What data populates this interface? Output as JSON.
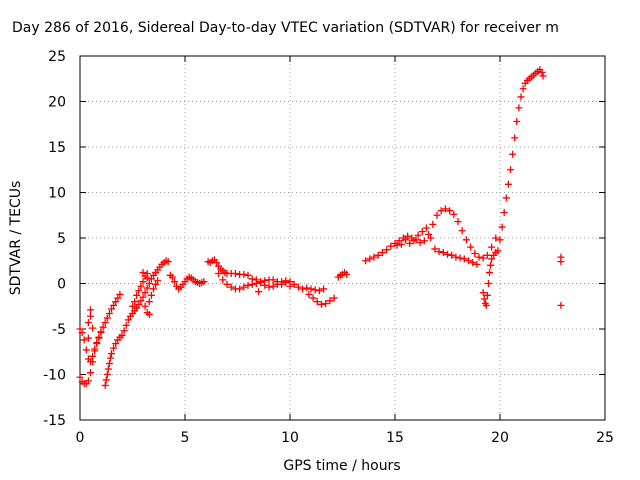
{
  "chart_data": {
    "type": "scatter",
    "title": "Day 286 of 2016, Sidereal Day-to-day VTEC variation (SDTVAR) for receiver m",
    "xlabel": "GPS time / hours",
    "ylabel": "SDTVAR / TECUs",
    "xlim": [
      0,
      25
    ],
    "ylim": [
      -15,
      25
    ],
    "x_ticks": [
      0,
      5,
      10,
      15,
      20,
      25
    ],
    "y_ticks": [
      -15,
      -10,
      -5,
      0,
      5,
      10,
      15,
      20,
      25
    ],
    "x_tick_labels": [
      "0",
      "5",
      "10",
      "15",
      "20",
      "25"
    ],
    "y_tick_labels": [
      "-15",
      "-10",
      "-5",
      "0",
      "5",
      "10",
      "15",
      "20",
      "25"
    ],
    "grid": true,
    "marker": "plus",
    "color": "#ff0000",
    "series": [
      {
        "points": [
          [
            0.0,
            -10.3
          ],
          [
            0.1,
            -10.8
          ],
          [
            0.2,
            -11.0
          ],
          [
            0.3,
            -11.0
          ],
          [
            0.4,
            -10.7
          ],
          [
            0.5,
            -9.8
          ],
          [
            0.6,
            -8.6
          ],
          [
            0.7,
            -7.4
          ],
          [
            0.8,
            -6.6
          ],
          [
            0.9,
            -6.0
          ],
          [
            1.0,
            -5.4
          ],
          [
            1.1,
            -4.8
          ],
          [
            1.2,
            -4.3
          ],
          [
            1.3,
            -3.8
          ],
          [
            1.4,
            -3.3
          ],
          [
            1.5,
            -2.8
          ],
          [
            1.6,
            -2.4
          ],
          [
            1.7,
            -2.0
          ],
          [
            1.8,
            -1.6
          ],
          [
            1.9,
            -1.2
          ],
          [
            0.0,
            -5.0
          ],
          [
            0.1,
            -5.4
          ],
          [
            0.2,
            -6.2
          ],
          [
            0.3,
            -7.3
          ],
          [
            0.4,
            -8.3
          ],
          [
            0.5,
            -8.6
          ],
          [
            0.6,
            -8.0
          ],
          [
            0.7,
            -7.2
          ],
          [
            0.8,
            -6.5
          ],
          [
            0.9,
            -5.9
          ],
          [
            1.0,
            -5.3
          ],
          [
            0.4,
            -4.3
          ],
          [
            0.5,
            -3.6
          ],
          [
            0.5,
            -2.9
          ],
          [
            0.6,
            -4.9
          ],
          [
            0.4,
            -6.0
          ],
          [
            1.2,
            -11.2
          ],
          [
            1.25,
            -10.6
          ],
          [
            1.3,
            -10.0
          ],
          [
            1.35,
            -9.4
          ],
          [
            1.4,
            -8.8
          ],
          [
            1.45,
            -8.2
          ],
          [
            1.5,
            -7.7
          ],
          [
            1.6,
            -7.1
          ],
          [
            1.7,
            -6.6
          ],
          [
            1.8,
            -6.2
          ],
          [
            1.9,
            -5.9
          ],
          [
            2.0,
            -5.7
          ],
          [
            2.1,
            -5.2
          ],
          [
            2.2,
            -4.6
          ],
          [
            2.3,
            -4.0
          ],
          [
            2.4,
            -3.6
          ],
          [
            2.5,
            -3.3
          ],
          [
            2.6,
            -3.0
          ],
          [
            2.7,
            -2.7
          ],
          [
            2.8,
            -2.3
          ],
          [
            2.9,
            -1.9
          ],
          [
            3.0,
            -1.5
          ],
          [
            3.1,
            -1.0
          ],
          [
            3.2,
            -0.5
          ],
          [
            3.3,
            0.0
          ],
          [
            3.4,
            0.5
          ],
          [
            3.5,
            0.9
          ],
          [
            3.6,
            1.2
          ],
          [
            3.7,
            1.5
          ],
          [
            3.8,
            1.8
          ],
          [
            3.9,
            2.1
          ],
          [
            4.0,
            2.3
          ],
          [
            4.1,
            2.5
          ],
          [
            4.2,
            2.4
          ],
          [
            2.5,
            -2.5
          ],
          [
            2.6,
            -2.0
          ],
          [
            2.7,
            -1.3
          ],
          [
            2.8,
            -0.8
          ],
          [
            2.9,
            -0.3
          ],
          [
            3.0,
            0.2
          ],
          [
            3.1,
            0.8
          ],
          [
            3.2,
            1.1
          ],
          [
            3.1,
            -2.5
          ],
          [
            3.2,
            -3.2
          ],
          [
            3.3,
            -2.0
          ],
          [
            3.3,
            -3.4
          ],
          [
            3.4,
            -1.3
          ],
          [
            3.5,
            -0.6
          ],
          [
            3.6,
            -0.1
          ],
          [
            3.7,
            0.3
          ],
          [
            3.0,
            1.2
          ],
          [
            3.2,
            0.6
          ],
          [
            4.3,
            0.9
          ],
          [
            4.4,
            0.7
          ],
          [
            4.5,
            0.2
          ],
          [
            4.6,
            -0.3
          ],
          [
            4.7,
            -0.6
          ],
          [
            4.8,
            -0.4
          ],
          [
            4.9,
            -0.1
          ],
          [
            5.0,
            0.2
          ],
          [
            5.1,
            0.5
          ],
          [
            5.2,
            0.7
          ],
          [
            5.3,
            0.6
          ],
          [
            5.4,
            0.4
          ],
          [
            5.5,
            0.2
          ],
          [
            5.6,
            0.1
          ],
          [
            5.7,
            0.0
          ],
          [
            5.8,
            0.1
          ],
          [
            5.9,
            0.2
          ],
          [
            6.1,
            2.4
          ],
          [
            6.2,
            2.3
          ],
          [
            6.3,
            2.5
          ],
          [
            6.4,
            2.6
          ],
          [
            6.5,
            2.3
          ],
          [
            6.6,
            1.9
          ],
          [
            6.7,
            1.6
          ],
          [
            6.8,
            1.4
          ],
          [
            6.9,
            1.2
          ],
          [
            7.0,
            1.1
          ],
          [
            7.2,
            1.1
          ],
          [
            7.4,
            1.1
          ],
          [
            7.6,
            1.0
          ],
          [
            7.8,
            1.0
          ],
          [
            8.0,
            0.9
          ],
          [
            6.6,
            1.1
          ],
          [
            6.8,
            0.4
          ],
          [
            7.0,
            -0.1
          ],
          [
            7.2,
            -0.4
          ],
          [
            7.4,
            -0.6
          ],
          [
            7.6,
            -0.6
          ],
          [
            7.8,
            -0.4
          ],
          [
            8.0,
            -0.2
          ],
          [
            8.2,
            -0.1
          ],
          [
            8.4,
            0.0
          ],
          [
            8.6,
            0.1
          ],
          [
            8.8,
            0.3
          ],
          [
            9.0,
            0.4
          ],
          [
            9.2,
            0.4
          ],
          [
            9.4,
            0.2
          ],
          [
            9.6,
            0.2
          ],
          [
            9.8,
            0.3
          ],
          [
            10.0,
            0.2
          ],
          [
            10.2,
            -0.1
          ],
          [
            10.4,
            -0.4
          ],
          [
            10.6,
            -0.6
          ],
          [
            8.2,
            0.5
          ],
          [
            8.4,
            0.4
          ],
          [
            8.6,
            0.2
          ],
          [
            8.8,
            -0.2
          ],
          [
            9.0,
            -0.4
          ],
          [
            9.2,
            -0.3
          ],
          [
            9.4,
            -0.1
          ],
          [
            9.6,
            -0.1
          ],
          [
            9.8,
            0.1
          ],
          [
            10.0,
            -0.3
          ],
          [
            8.5,
            -0.9
          ],
          [
            10.8,
            -0.5
          ],
          [
            11.0,
            -0.6
          ],
          [
            11.2,
            -0.7
          ],
          [
            11.4,
            -0.8
          ],
          [
            11.6,
            -0.6
          ],
          [
            10.9,
            -1.2
          ],
          [
            11.1,
            -1.6
          ],
          [
            11.3,
            -2.0
          ],
          [
            11.5,
            -2.3
          ],
          [
            11.7,
            -2.2
          ],
          [
            11.9,
            -1.9
          ],
          [
            12.1,
            -1.6
          ],
          [
            12.3,
            0.7
          ],
          [
            12.4,
            0.9
          ],
          [
            12.5,
            1.0
          ],
          [
            12.6,
            1.2
          ],
          [
            12.7,
            1.0
          ],
          [
            13.6,
            2.5
          ],
          [
            13.8,
            2.7
          ],
          [
            14.0,
            2.9
          ],
          [
            14.2,
            3.1
          ],
          [
            14.4,
            3.4
          ],
          [
            14.6,
            3.7
          ],
          [
            14.8,
            4.1
          ],
          [
            15.0,
            4.4
          ],
          [
            15.2,
            4.7
          ],
          [
            15.4,
            5.0
          ],
          [
            15.6,
            5.2
          ],
          [
            15.8,
            5.0
          ],
          [
            16.0,
            4.8
          ],
          [
            16.2,
            4.5
          ],
          [
            16.4,
            4.7
          ],
          [
            16.6,
            5.4
          ],
          [
            16.8,
            6.5
          ],
          [
            17.0,
            7.5
          ],
          [
            17.2,
            8.0
          ],
          [
            17.4,
            8.2
          ],
          [
            17.6,
            8.0
          ],
          [
            17.8,
            7.6
          ],
          [
            18.0,
            6.8
          ],
          [
            18.2,
            5.8
          ],
          [
            18.4,
            4.8
          ],
          [
            18.6,
            4.0
          ],
          [
            18.8,
            3.3
          ],
          [
            19.0,
            2.9
          ],
          [
            19.2,
            2.8
          ],
          [
            19.4,
            3.1
          ],
          [
            19.6,
            4.0
          ],
          [
            19.8,
            5.0
          ],
          [
            15.1,
            4.2
          ],
          [
            15.3,
            4.3
          ],
          [
            15.5,
            4.8
          ],
          [
            15.7,
            4.4
          ],
          [
            15.9,
            4.7
          ],
          [
            16.1,
            5.3
          ],
          [
            16.3,
            5.7
          ],
          [
            16.5,
            6.1
          ],
          [
            16.7,
            5.0
          ],
          [
            16.9,
            3.8
          ],
          [
            17.1,
            3.5
          ],
          [
            17.3,
            3.4
          ],
          [
            17.5,
            3.2
          ],
          [
            17.7,
            3.1
          ],
          [
            17.9,
            2.9
          ],
          [
            18.1,
            2.8
          ],
          [
            18.3,
            2.7
          ],
          [
            18.5,
            2.5
          ],
          [
            18.7,
            2.3
          ],
          [
            18.9,
            2.1
          ],
          [
            19.2,
            -1.0
          ],
          [
            19.25,
            -1.7
          ],
          [
            19.3,
            -2.2
          ],
          [
            19.35,
            -2.4
          ],
          [
            19.4,
            -1.3
          ],
          [
            19.45,
            0.0
          ],
          [
            19.5,
            1.2
          ],
          [
            19.55,
            2.0
          ],
          [
            19.6,
            2.7
          ],
          [
            19.7,
            3.1
          ],
          [
            19.8,
            3.4
          ],
          [
            19.9,
            3.6
          ],
          [
            20.0,
            4.8
          ],
          [
            20.1,
            6.2
          ],
          [
            20.2,
            7.8
          ],
          [
            20.3,
            9.4
          ],
          [
            20.4,
            10.9
          ],
          [
            20.5,
            12.5
          ],
          [
            20.6,
            14.2
          ],
          [
            20.7,
            16.0
          ],
          [
            20.8,
            17.8
          ],
          [
            20.9,
            19.3
          ],
          [
            21.0,
            20.5
          ],
          [
            21.1,
            21.4
          ],
          [
            21.2,
            22.0
          ],
          [
            21.3,
            22.3
          ],
          [
            21.4,
            22.5
          ],
          [
            21.5,
            22.7
          ],
          [
            21.6,
            22.9
          ],
          [
            21.7,
            23.1
          ],
          [
            21.8,
            23.3
          ],
          [
            21.9,
            23.5
          ],
          [
            22.0,
            23.2
          ],
          [
            22.05,
            22.8
          ],
          [
            22.9,
            2.4
          ],
          [
            22.9,
            2.9
          ],
          [
            22.9,
            -2.4
          ]
        ]
      }
    ]
  }
}
